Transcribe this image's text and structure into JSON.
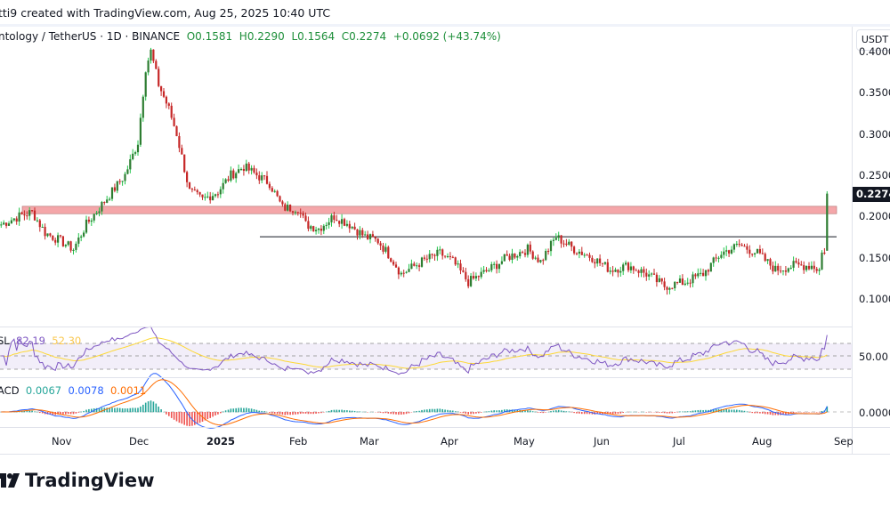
{
  "header": {
    "caption": "tti9 created with TradingView.com, Aug 25, 2025 10:40 UTC"
  },
  "legend": {
    "symbol": "ntology / TetherUS · 1D · BINANCE",
    "open": "O0.1581",
    "high": "H0.2290",
    "low": "L0.1564",
    "close": "C0.2274",
    "change": "+0.0692 (+43.74%)"
  },
  "price_axis": {
    "currency": "USDT",
    "ticks": [
      "0.4000",
      "0.3500",
      "0.3000",
      "0.2500",
      "0.2000",
      "0.1500",
      "0.1000"
    ],
    "last_price": "0.2274"
  },
  "rsi": {
    "label": "SL",
    "value": "82.19",
    "ma": "52.30",
    "tick": "50.00",
    "colors": {
      "rsi": "#7e57c2",
      "ma": "#fdd835"
    }
  },
  "macd": {
    "label": "ACD",
    "hist": "0.0067",
    "macd": "0.0078",
    "signal": "0.0011",
    "tick": "0.0000",
    "colors": {
      "hist": "#26a69a",
      "macd": "#2962ff",
      "signal": "#ff6d00"
    }
  },
  "time_axis": [
    "Nov",
    "Dec",
    "2025",
    "Feb",
    "Mar",
    "Apr",
    "May",
    "Jun",
    "Jul",
    "Aug",
    "Sep"
  ],
  "colors": {
    "up": "#2e7d32",
    "down": "#c62828",
    "zone": "#f4a6a9"
  },
  "brand": "TradingView",
  "chart_data": {
    "type": "candlestick",
    "note_series": "approximate daily closes",
    "levels": {
      "resistance_zone": [
        0.203,
        0.212
      ],
      "support_line": 0.175
    },
    "closes": [
      [
        "2024-10-08",
        0.19
      ],
      [
        "2024-10-15",
        0.2
      ],
      [
        "2024-10-20",
        0.205
      ],
      [
        "2024-10-25",
        0.18
      ],
      [
        "2024-10-31",
        0.17
      ],
      [
        "2024-11-05",
        0.16
      ],
      [
        "2024-11-10",
        0.19
      ],
      [
        "2024-11-15",
        0.21
      ],
      [
        "2024-11-20",
        0.23
      ],
      [
        "2024-11-25",
        0.25
      ],
      [
        "2024-11-30",
        0.29
      ],
      [
        "2024-12-03",
        0.38
      ],
      [
        "2024-12-05",
        0.4
      ],
      [
        "2024-12-08",
        0.36
      ],
      [
        "2024-12-12",
        0.33
      ],
      [
        "2024-12-15",
        0.3
      ],
      [
        "2024-12-20",
        0.23
      ],
      [
        "2024-12-25",
        0.22
      ],
      [
        "2024-12-31",
        0.23
      ],
      [
        "2025-01-05",
        0.25
      ],
      [
        "2025-01-10",
        0.26
      ],
      [
        "2025-01-15",
        0.25
      ],
      [
        "2025-01-20",
        0.24
      ],
      [
        "2025-01-25",
        0.21
      ],
      [
        "2025-01-31",
        0.21
      ],
      [
        "2025-02-03",
        0.19
      ],
      [
        "2025-02-08",
        0.185
      ],
      [
        "2025-02-14",
        0.2
      ],
      [
        "2025-02-20",
        0.19
      ],
      [
        "2025-02-26",
        0.175
      ],
      [
        "2025-03-03",
        0.17
      ],
      [
        "2025-03-08",
        0.15
      ],
      [
        "2025-03-12",
        0.13
      ],
      [
        "2025-03-20",
        0.145
      ],
      [
        "2025-03-27",
        0.155
      ],
      [
        "2025-04-01",
        0.145
      ],
      [
        "2025-04-07",
        0.12
      ],
      [
        "2025-04-15",
        0.135
      ],
      [
        "2025-04-22",
        0.15
      ],
      [
        "2025-04-30",
        0.16
      ],
      [
        "2025-05-05",
        0.145
      ],
      [
        "2025-05-11",
        0.175
      ],
      [
        "2025-05-18",
        0.16
      ],
      [
        "2025-05-25",
        0.15
      ],
      [
        "2025-06-01",
        0.135
      ],
      [
        "2025-06-08",
        0.14
      ],
      [
        "2025-06-15",
        0.13
      ],
      [
        "2025-06-22",
        0.115
      ],
      [
        "2025-06-30",
        0.12
      ],
      [
        "2025-07-07",
        0.13
      ],
      [
        "2025-07-14",
        0.155
      ],
      [
        "2025-07-21",
        0.165
      ],
      [
        "2025-07-28",
        0.155
      ],
      [
        "2025-08-04",
        0.135
      ],
      [
        "2025-08-11",
        0.14
      ],
      [
        "2025-08-18",
        0.14
      ],
      [
        "2025-08-21",
        0.135
      ],
      [
        "2025-08-22",
        0.155
      ],
      [
        "2025-08-23",
        0.158
      ],
      [
        "2025-08-24",
        0.2274
      ]
    ]
  }
}
